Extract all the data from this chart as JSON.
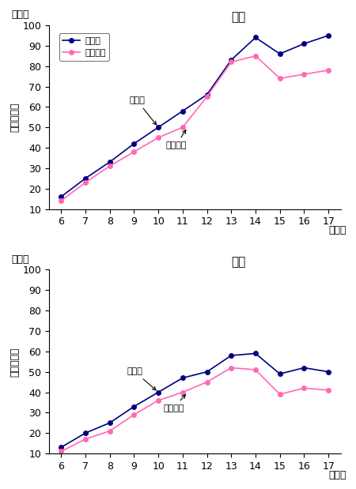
{
  "ages": [
    6,
    7,
    8,
    9,
    10,
    11,
    12,
    13,
    14,
    15,
    16,
    17
  ],
  "male_taberu": [
    16,
    25,
    33,
    42,
    50,
    58,
    66,
    83,
    94,
    86,
    91,
    95
  ],
  "male_tabenai": [
    14,
    23,
    31,
    38,
    45,
    50,
    65,
    82,
    85,
    74,
    76,
    78
  ],
  "female_taberu": [
    13,
    20,
    25,
    33,
    40,
    47,
    50,
    58,
    59,
    49,
    52,
    50
  ],
  "female_tabenai": [
    11,
    17,
    21,
    29,
    36,
    40,
    45,
    52,
    51,
    39,
    42,
    41
  ],
  "color_taberu": "#000080",
  "color_tabenai": "#FF69B4",
  "ylim": [
    10,
    100
  ],
  "yticks": [
    10,
    20,
    30,
    40,
    50,
    60,
    70,
    80,
    90,
    100
  ],
  "ylabel": "折り返し数",
  "xlabel_unit": "（歳）",
  "ylabel_unit": "（回）",
  "title_male": "男子",
  "title_female": "女子",
  "legend_taberu": "食べる",
  "legend_tabenai": "食べない",
  "annot_taberu": "食べる",
  "annot_tabenai": "食べない"
}
